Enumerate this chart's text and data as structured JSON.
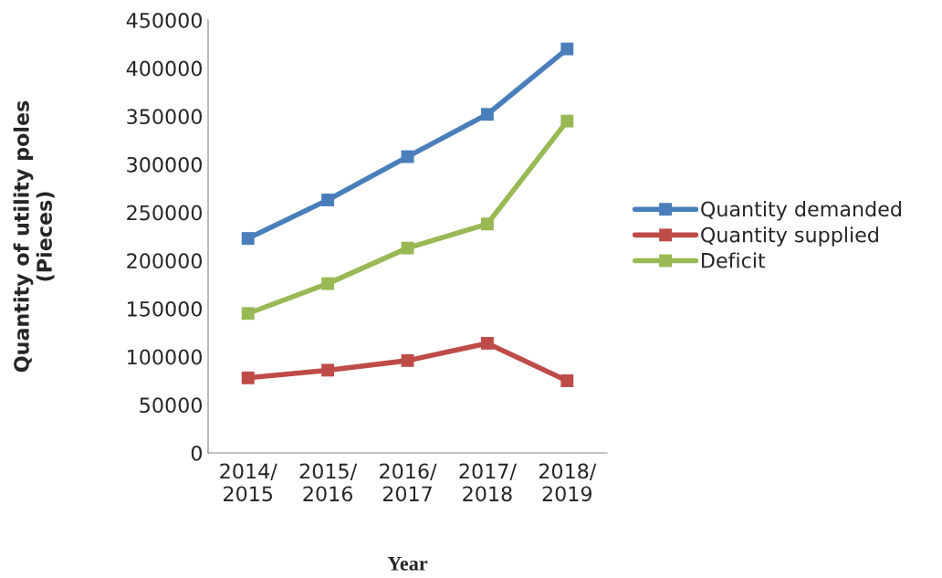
{
  "chart_data": {
    "type": "line",
    "xlabel": "Year",
    "ylabel": "Quantity of utility poles\n(Pieces)",
    "categories": [
      "2014/\n2015",
      "2015/\n2016",
      "2016/\n2017",
      "2017/\n2018",
      "2018/\n2019"
    ],
    "series": [
      {
        "name": "Quantity demanded",
        "color": "#4a7ebb",
        "values": [
          223000,
          263000,
          308000,
          352000,
          420000
        ]
      },
      {
        "name": "Quantity supplied",
        "color": "#be4b48",
        "values": [
          78000,
          86000,
          96000,
          114000,
          75000
        ]
      },
      {
        "name": "Deficit",
        "color": "#98b954",
        "values": [
          145000,
          176000,
          213000,
          238000,
          345000
        ]
      }
    ],
    "ylim": [
      0,
      450000
    ],
    "yticks": [
      0,
      50000,
      100000,
      150000,
      200000,
      250000,
      300000,
      350000,
      400000,
      450000
    ],
    "marker": "square",
    "line_style": "solid",
    "grid": false,
    "legend": "right"
  }
}
